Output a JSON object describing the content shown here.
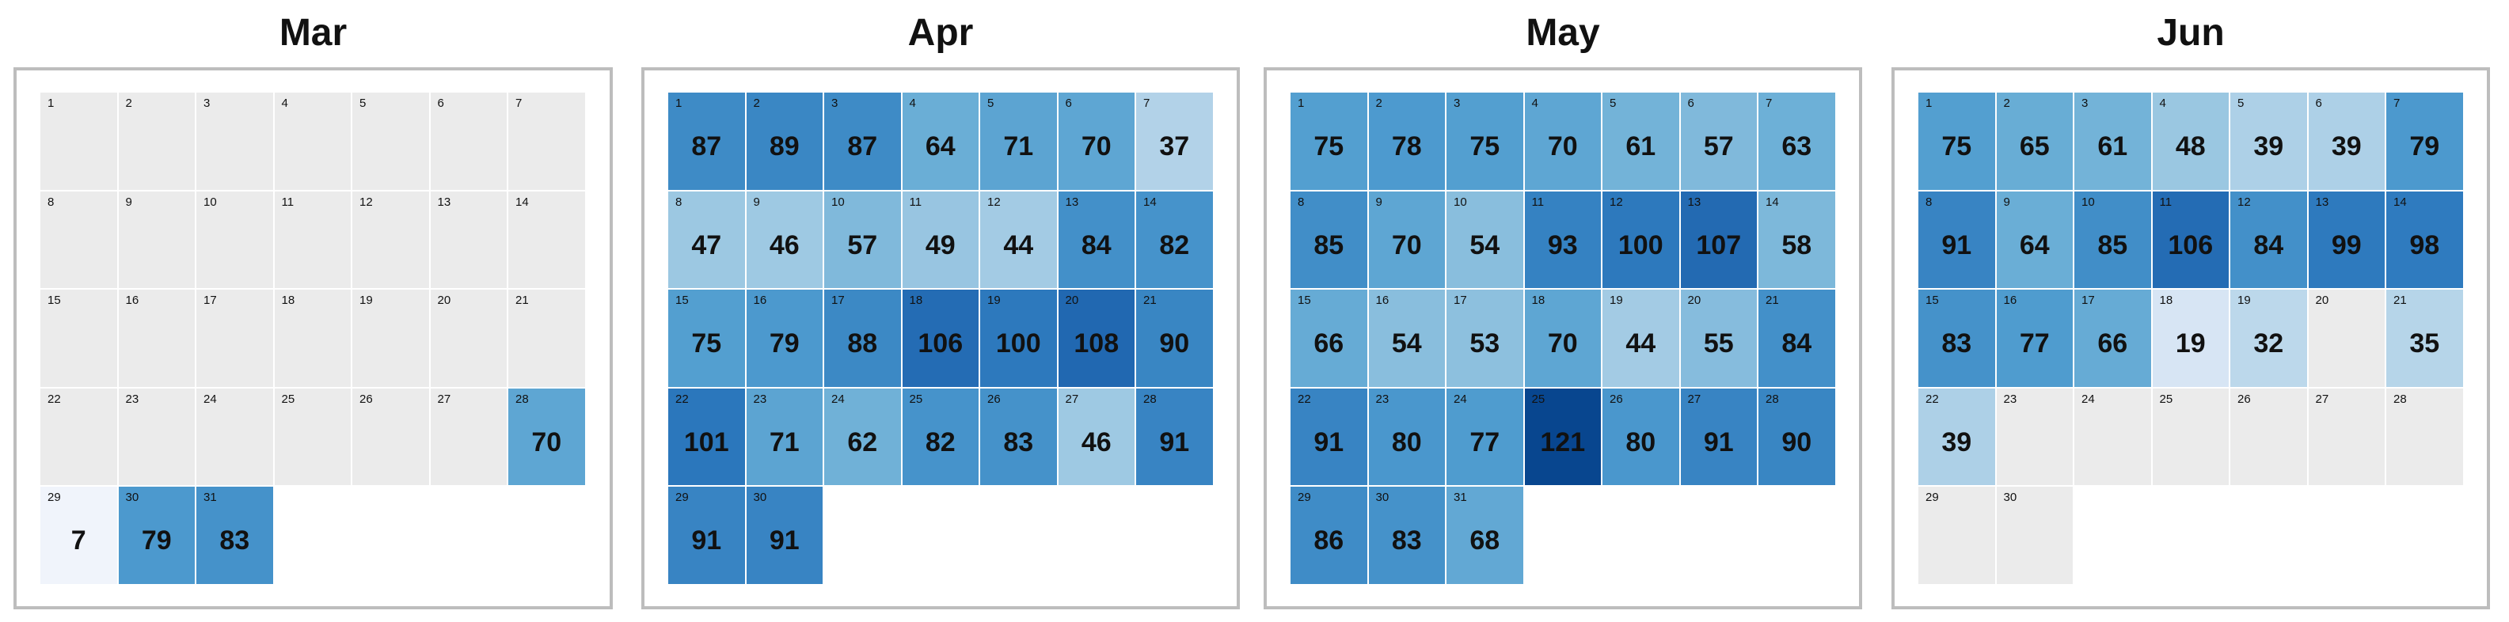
{
  "chart_data": {
    "type": "heatmap",
    "subtype": "calendar",
    "weekday_labels": [],
    "color_scale": {
      "min": 7,
      "max": 121,
      "low_color": "#f0f4fb",
      "high_color": "#08468f",
      "empty_color": "#ebebeb"
    },
    "months": [
      {
        "name": "Mar",
        "start_weekday": 0,
        "days": 31,
        "values": [
          null,
          null,
          null,
          null,
          null,
          null,
          null,
          null,
          null,
          null,
          null,
          null,
          null,
          null,
          null,
          null,
          null,
          null,
          null,
          null,
          null,
          null,
          null,
          null,
          null,
          null,
          null,
          70,
          7,
          79,
          83
        ]
      },
      {
        "name": "Apr",
        "start_weekday": 0,
        "days": 30,
        "values": [
          87,
          89,
          87,
          64,
          71,
          70,
          37,
          47,
          46,
          57,
          49,
          44,
          84,
          82,
          75,
          79,
          88,
          106,
          100,
          108,
          90,
          101,
          71,
          62,
          82,
          83,
          46,
          91,
          91,
          91
        ]
      },
      {
        "name": "May",
        "start_weekday": 0,
        "days": 31,
        "values": [
          75,
          78,
          75,
          70,
          61,
          57,
          63,
          85,
          70,
          54,
          93,
          100,
          107,
          58,
          66,
          54,
          53,
          70,
          44,
          55,
          84,
          91,
          80,
          77,
          121,
          80,
          91,
          90,
          86,
          83,
          68
        ]
      },
      {
        "name": "Jun",
        "start_weekday": 0,
        "days": 30,
        "values": [
          75,
          65,
          61,
          48,
          39,
          39,
          79,
          91,
          64,
          85,
          106,
          84,
          99,
          98,
          83,
          77,
          66,
          19,
          32,
          null,
          35,
          39,
          null,
          null,
          null,
          null,
          null,
          null,
          null,
          null
        ]
      }
    ]
  }
}
